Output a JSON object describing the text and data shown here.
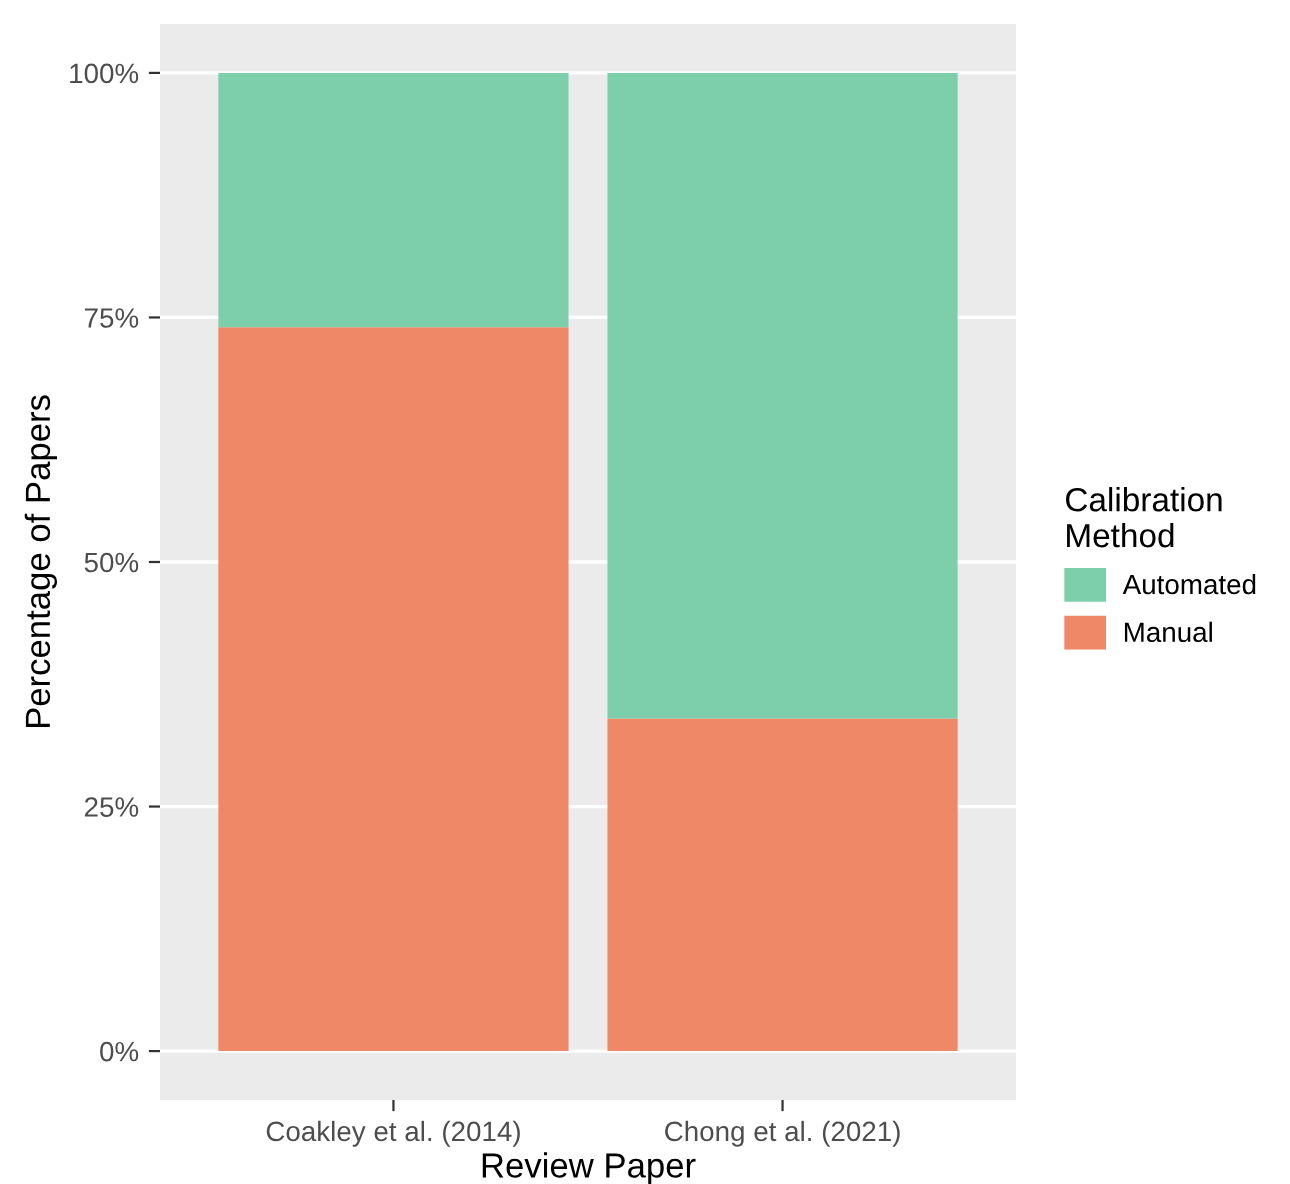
{
  "chart_data": {
    "type": "bar",
    "stacked": true,
    "xlabel": "Review Paper",
    "ylabel": "Percentage of Papers",
    "legend_title": "Calibration\nMethod",
    "categories": [
      "Coakley et al. (2014)",
      "Chong et al. (2021)"
    ],
    "series": [
      {
        "name": "Manual",
        "color": "#ee8866",
        "values": [
          74,
          34
        ]
      },
      {
        "name": "Automated",
        "color": "#7dcfab",
        "values": [
          26,
          66
        ]
      }
    ],
    "ylim": [
      -5,
      105
    ],
    "yticks": [
      {
        "value": 0,
        "label": "0%"
      },
      {
        "value": 25,
        "label": "25%"
      },
      {
        "value": 50,
        "label": "50%"
      },
      {
        "value": 75,
        "label": "75%"
      },
      {
        "value": 100,
        "label": "100%"
      }
    ],
    "grid": "y",
    "legend": "right"
  }
}
